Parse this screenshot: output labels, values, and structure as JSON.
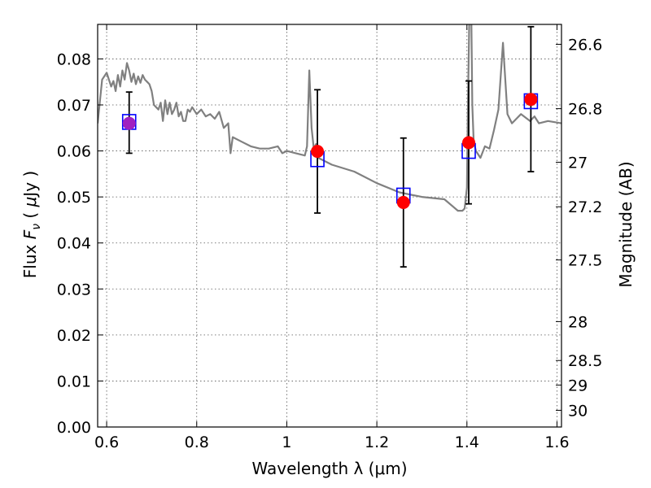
{
  "chart_data": {
    "type": "scatter",
    "xlabel": "Wavelength  λ (μm)",
    "ylabel_left": {
      "prefix": "Flux  ",
      "var": "F",
      "sub": "ν",
      "unit_open": "  ( ",
      "mu": "μ",
      "unit_close": "Jy )"
    },
    "ylabel_right": "Magnitude (AB)",
    "xlim": [
      0.58,
      1.61
    ],
    "ylim": [
      0.0,
      0.0875
    ],
    "grid": true,
    "x_ticks": [
      {
        "v": 0.6,
        "label": "0.6"
      },
      {
        "v": 0.8,
        "label": "0.8"
      },
      {
        "v": 1.0,
        "label": "1"
      },
      {
        "v": 1.2,
        "label": "1.2"
      },
      {
        "v": 1.4,
        "label": "1.4"
      },
      {
        "v": 1.6,
        "label": "1.6"
      }
    ],
    "y_ticks": [
      {
        "v": 0.0,
        "label": "0.00"
      },
      {
        "v": 0.01,
        "label": "0.01"
      },
      {
        "v": 0.02,
        "label": "0.02"
      },
      {
        "v": 0.03,
        "label": "0.03"
      },
      {
        "v": 0.04,
        "label": "0.04"
      },
      {
        "v": 0.05,
        "label": "0.05"
      },
      {
        "v": 0.06,
        "label": "0.06"
      },
      {
        "v": 0.07,
        "label": "0.07"
      },
      {
        "v": 0.08,
        "label": "0.08"
      }
    ],
    "mag_ticks": [
      {
        "mag": 26.6,
        "label": "26.6"
      },
      {
        "mag": 26.8,
        "label": "26.8"
      },
      {
        "mag": 27.0,
        "label": "27"
      },
      {
        "mag": 27.2,
        "label": "27.2"
      },
      {
        "mag": 27.5,
        "label": "27.5"
      },
      {
        "mag": 28.0,
        "label": "28"
      },
      {
        "mag": 28.5,
        "label": "28.5"
      },
      {
        "mag": 29.0,
        "label": "29"
      },
      {
        "mag": 30.0,
        "label": "30"
      }
    ],
    "colors": {
      "spectrum": "#808080",
      "model_box": "#0000ff",
      "observed": "#ff0000",
      "observed_first": "#a020c0",
      "errorbar": "#000000",
      "grid": "#555555"
    },
    "spectrum": {
      "x": [
        0.58,
        0.59,
        0.6,
        0.61,
        0.615,
        0.62,
        0.625,
        0.63,
        0.635,
        0.64,
        0.645,
        0.65,
        0.655,
        0.66,
        0.665,
        0.67,
        0.675,
        0.68,
        0.685,
        0.69,
        0.695,
        0.7,
        0.705,
        0.71,
        0.715,
        0.72,
        0.725,
        0.73,
        0.735,
        0.74,
        0.745,
        0.75,
        0.755,
        0.76,
        0.765,
        0.77,
        0.775,
        0.78,
        0.785,
        0.79,
        0.8,
        0.81,
        0.82,
        0.83,
        0.84,
        0.85,
        0.86,
        0.87,
        0.875,
        0.88,
        0.9,
        0.92,
        0.94,
        0.96,
        0.98,
        0.99,
        1.0,
        1.02,
        1.04,
        1.045,
        1.05,
        1.055,
        1.06,
        1.065,
        1.07,
        1.08,
        1.1,
        1.15,
        1.2,
        1.25,
        1.3,
        1.35,
        1.38,
        1.39,
        1.395,
        1.4,
        1.402,
        1.405,
        1.408,
        1.41,
        1.412,
        1.415,
        1.42,
        1.43,
        1.44,
        1.45,
        1.46,
        1.47,
        1.48,
        1.49,
        1.5,
        1.52,
        1.54,
        1.55,
        1.56,
        1.58,
        1.61
      ],
      "y": [
        0.066,
        0.0755,
        0.077,
        0.074,
        0.0752,
        0.073,
        0.0765,
        0.074,
        0.0775,
        0.0755,
        0.0791,
        0.0775,
        0.075,
        0.0768,
        0.0745,
        0.0762,
        0.0748,
        0.0765,
        0.0755,
        0.075,
        0.0745,
        0.073,
        0.07,
        0.0695,
        0.069,
        0.0705,
        0.0665,
        0.071,
        0.068,
        0.0705,
        0.068,
        0.069,
        0.0705,
        0.0675,
        0.0685,
        0.0665,
        0.0665,
        0.069,
        0.0685,
        0.0695,
        0.068,
        0.069,
        0.0675,
        0.068,
        0.067,
        0.0685,
        0.065,
        0.066,
        0.0595,
        0.063,
        0.062,
        0.061,
        0.0605,
        0.0605,
        0.061,
        0.0595,
        0.06,
        0.0595,
        0.059,
        0.061,
        0.0775,
        0.065,
        0.0605,
        0.0615,
        0.0585,
        0.058,
        0.057,
        0.0555,
        0.053,
        0.051,
        0.05,
        0.0495,
        0.047,
        0.047,
        0.0475,
        0.052,
        0.068,
        0.0875,
        0.088,
        0.0875,
        0.07,
        0.062,
        0.06,
        0.0585,
        0.061,
        0.0605,
        0.0645,
        0.069,
        0.0835,
        0.068,
        0.066,
        0.068,
        0.0665,
        0.0675,
        0.066,
        0.0665,
        0.066
      ]
    },
    "points": [
      {
        "x": 0.65,
        "model": 0.0663,
        "obs": 0.066,
        "err_lo": 0.0595,
        "err_hi": 0.0728
      },
      {
        "x": 1.068,
        "model": 0.0582,
        "obs": 0.0599,
        "err_lo": 0.0465,
        "err_hi": 0.0733
      },
      {
        "x": 1.259,
        "model": 0.0503,
        "obs": 0.0488,
        "err_lo": 0.0348,
        "err_hi": 0.0628
      },
      {
        "x": 1.404,
        "model": 0.06,
        "obs": 0.0618,
        "err_lo": 0.0485,
        "err_hi": 0.0752
      },
      {
        "x": 1.542,
        "model": 0.0708,
        "obs": 0.0712,
        "err_lo": 0.0555,
        "err_hi": 0.087
      }
    ]
  }
}
